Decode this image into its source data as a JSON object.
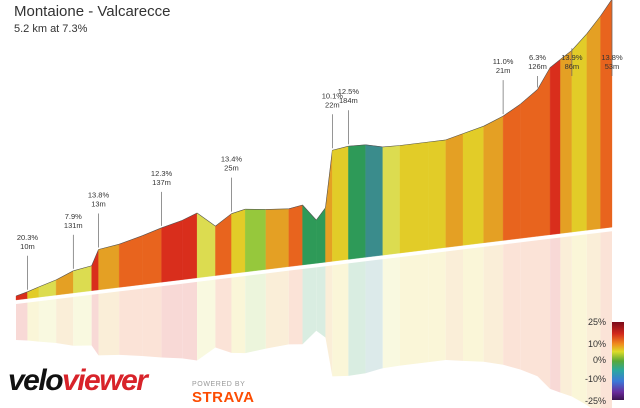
{
  "title": "Montaione - Valcarecce",
  "subtitle": "5.2 km at 7.3%",
  "colors": {
    "steep": "#d92e1c",
    "hard": "#e8641e",
    "medium": "#e4a024",
    "moderate": "#e2cc28",
    "easy": "#dcdc50",
    "flat": "#96c83c",
    "descent": "#2e9a58",
    "steep_descent": "#3a8c8c"
  },
  "legend": {
    "labels": [
      "25%",
      "10%",
      "0%",
      "-10%",
      "-25%"
    ]
  },
  "branding": {
    "velo": "velo",
    "viewer": "viewer",
    "powered_by": "POWERED BY",
    "strava": "STRAVA"
  },
  "chart_data": {
    "type": "area",
    "title": "Montaione - Valcarecce",
    "subtitle": "5.2 km at 7.3%",
    "x_unit": "km",
    "total_distance_km": 5.2,
    "average_gradient_pct": 7.3,
    "profile": [
      {
        "x": 0.0,
        "y": 0.0,
        "g": 3
      },
      {
        "x": 0.1,
        "y": 0.4,
        "g": 20
      },
      {
        "x": 0.2,
        "y": 0.9,
        "g": 5
      },
      {
        "x": 0.35,
        "y": 1.6,
        "g": 3
      },
      {
        "x": 0.5,
        "y": 2.6,
        "g": 8
      },
      {
        "x": 0.66,
        "y": 3.0,
        "g": 2
      },
      {
        "x": 0.72,
        "y": 5.2,
        "g": 14
      },
      {
        "x": 0.9,
        "y": 5.6,
        "g": 10
      },
      {
        "x": 1.1,
        "y": 6.4,
        "g": 12
      },
      {
        "x": 1.27,
        "y": 7.2,
        "g": 12
      },
      {
        "x": 1.45,
        "y": 7.9,
        "g": 14
      },
      {
        "x": 1.58,
        "y": 8.7,
        "g": 14
      },
      {
        "x": 1.74,
        "y": 6.5,
        "g": 3
      },
      {
        "x": 1.88,
        "y": 8.0,
        "g": 13
      },
      {
        "x": 2.0,
        "y": 8.4,
        "g": 6
      },
      {
        "x": 2.18,
        "y": 8.0,
        "g": 0
      },
      {
        "x": 2.38,
        "y": 7.7,
        "g": 8
      },
      {
        "x": 2.5,
        "y": 8.0,
        "g": 12
      },
      {
        "x": 2.62,
        "y": 5.6,
        "g": -4
      },
      {
        "x": 2.7,
        "y": 7.2,
        "g": -3
      },
      {
        "x": 2.76,
        "y": 15.3,
        "g": 10
      },
      {
        "x": 2.9,
        "y": 15.6,
        "g": 6
      },
      {
        "x": 3.05,
        "y": 15.5,
        "g": -2
      },
      {
        "x": 3.2,
        "y": 14.9,
        "g": -8
      },
      {
        "x": 3.35,
        "y": 14.8,
        "g": 4
      },
      {
        "x": 3.6,
        "y": 14.8,
        "g": 6
      },
      {
        "x": 3.75,
        "y": 14.8,
        "g": 7
      },
      {
        "x": 3.9,
        "y": 15.4,
        "g": 8
      },
      {
        "x": 4.08,
        "y": 16.1,
        "g": 7
      },
      {
        "x": 4.25,
        "y": 17.2,
        "g": 10
      },
      {
        "x": 4.4,
        "y": 18.6,
        "g": 11
      },
      {
        "x": 4.55,
        "y": 20.4,
        "g": 13
      },
      {
        "x": 4.66,
        "y": 23.3,
        "g": 12
      },
      {
        "x": 4.75,
        "y": 24.3,
        "g": 14
      },
      {
        "x": 4.85,
        "y": 25.4,
        "g": 8
      },
      {
        "x": 4.98,
        "y": 27.5,
        "g": 6
      },
      {
        "x": 5.1,
        "y": 29.8,
        "g": 9
      },
      {
        "x": 5.2,
        "y": 32.0,
        "g": 11
      }
    ],
    "annotations": [
      {
        "x": 0.1,
        "gradient": "20.3%",
        "length": "10m"
      },
      {
        "x": 0.5,
        "gradient": "7.9%",
        "length": "131m"
      },
      {
        "x": 0.72,
        "gradient": "13.8%",
        "length": "13m"
      },
      {
        "x": 1.27,
        "gradient": "12.3%",
        "length": "137m"
      },
      {
        "x": 1.88,
        "gradient": "13.4%",
        "length": "25m"
      },
      {
        "x": 2.76,
        "gradient": "10.1%",
        "length": "22m"
      },
      {
        "x": 2.9,
        "gradient": "12.5%",
        "length": "184m"
      },
      {
        "x": 4.25,
        "gradient": "11.0%",
        "length": "21m"
      },
      {
        "x": 4.55,
        "gradient": "6.3%",
        "length": "126m"
      },
      {
        "x": 4.85,
        "gradient": "13.9%",
        "length": "86m"
      },
      {
        "x": 5.2,
        "gradient": "13.8%",
        "length": "53m"
      }
    ],
    "legend": [
      "25%",
      "10%",
      "0%",
      "-10%",
      "-25%"
    ]
  }
}
